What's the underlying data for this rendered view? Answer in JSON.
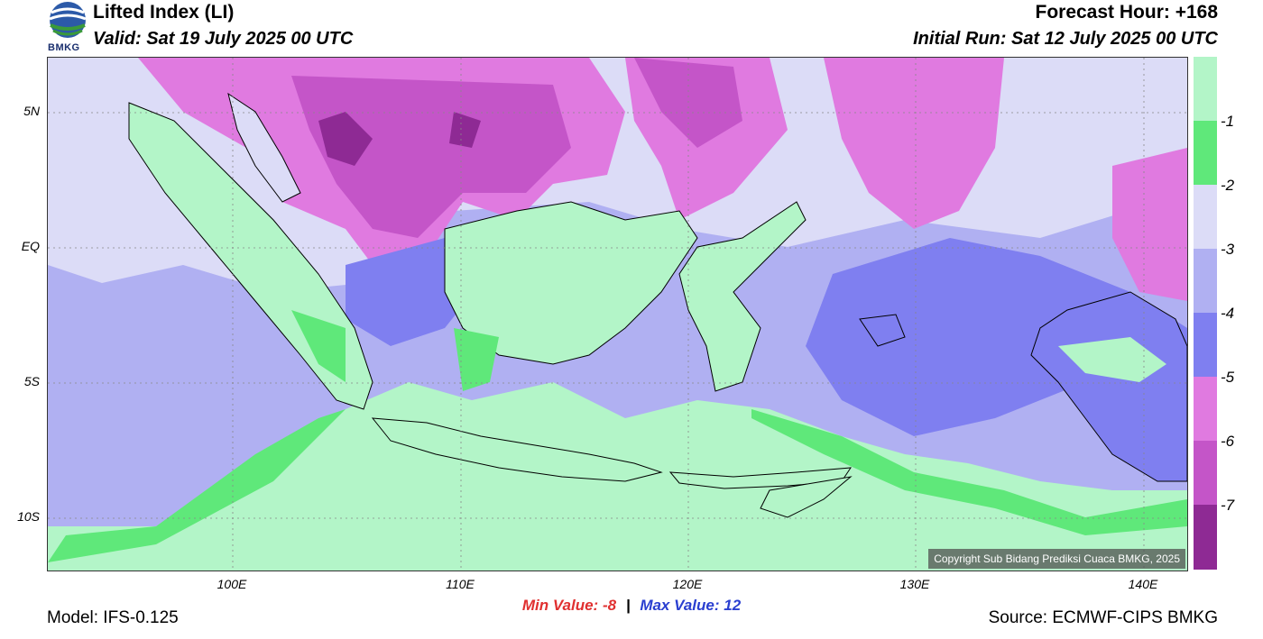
{
  "header": {
    "title": "Lifted Index (LI)",
    "valid": "Valid: Sat 19 July 2025 00 UTC",
    "forecast_hour": "Forecast Hour: +168",
    "initial_run": "Initial Run: Sat 12 July 2025 00 UTC",
    "logo_text": "BMKG"
  },
  "map": {
    "lat_labels": [
      "5N",
      "EQ",
      "5S",
      "10S"
    ],
    "lon_labels": [
      "100E",
      "110E",
      "120E",
      "130E",
      "140E"
    ],
    "copyright": "Copyright Sub Bidang Prediksi Cuaca BMKG, 2025"
  },
  "colorbar": {
    "labels": [
      "-1",
      "-2",
      "-3",
      "-4",
      "-5",
      "-6",
      "-7"
    ],
    "colors": [
      "#b3f5c8",
      "#5fe87a",
      "#dcdcf7",
      "#b0b0f2",
      "#7f7ff0",
      "#e07ae0",
      "#c455c8",
      "#8e2a94"
    ]
  },
  "stats": {
    "min_label": "Min Value:",
    "min_value": "-8",
    "separator": "|",
    "max_label": "Max Value:",
    "max_value": "12"
  },
  "footer": {
    "model": "Model: IFS-0.125",
    "source": "Source: ECMWF-CIPS BMKG"
  }
}
